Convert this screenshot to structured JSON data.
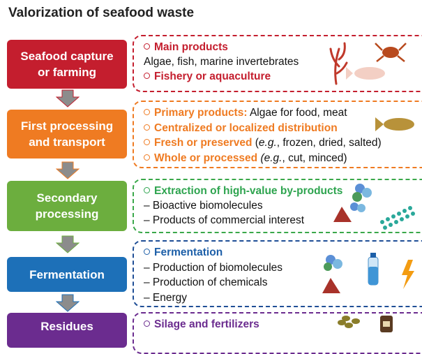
{
  "title": "Valorization of seafood waste",
  "stages": [
    {
      "label": [
        "Seafood capture",
        "or farming"
      ],
      "lines": [
        [
          "Main products"
        ],
        [
          "Algae, fish, marine invertebrates"
        ],
        [
          "Fishery or aquaculture"
        ]
      ]
    },
    {
      "label": [
        "First processing",
        "and transport"
      ],
      "lines": [
        [
          "Primary products:",
          " Algae for food, meat"
        ],
        [
          "Centralized or localized distribution"
        ],
        [
          "Fresh or preserved",
          " (",
          "e.g.",
          ", frozen, dried, salted)"
        ],
        [
          "Whole or processed",
          " (e.g.",
          ", cut, minced)"
        ]
      ]
    },
    {
      "label": [
        "Secondary",
        "processing"
      ],
      "lines": [
        [
          "Extraction of high-value by-products"
        ],
        [
          "– Bioactive biomolecules"
        ],
        [
          "– Products of commercial interest"
        ]
      ]
    },
    {
      "label": [
        "Fermentation"
      ],
      "lines": [
        [
          "Fermentation"
        ],
        [
          "– Production of biomolecules"
        ],
        [
          "– Production of chemicals"
        ],
        [
          "– Energy"
        ]
      ]
    },
    {
      "label": [
        "Residues"
      ],
      "lines": [
        [
          "Silage and fertilizers"
        ]
      ]
    }
  ]
}
